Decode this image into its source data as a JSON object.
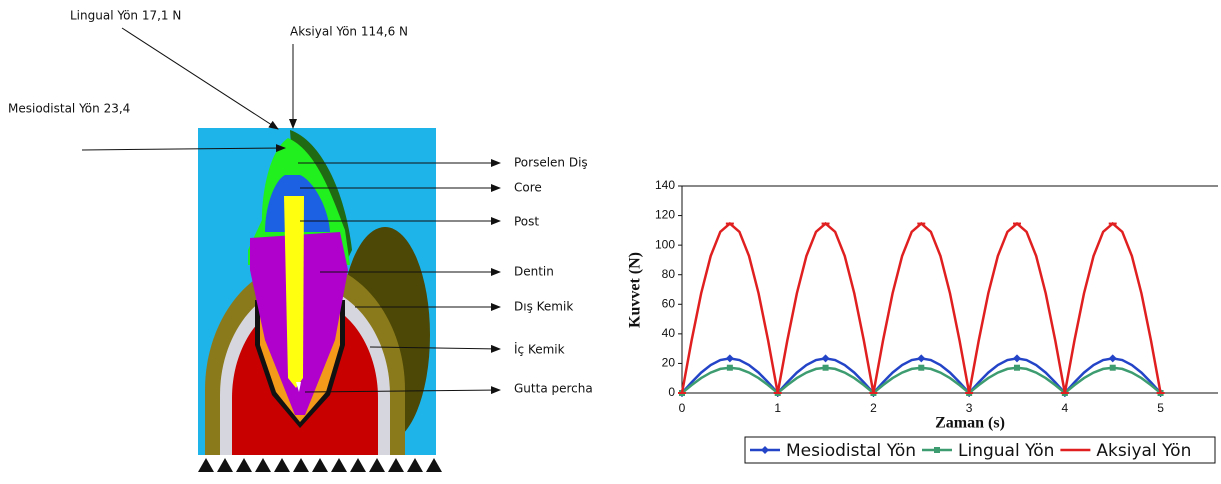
{
  "diagram": {
    "force_labels": [
      "Lingual Yön 17,1 N",
      "Aksiyal Yön 114,6 N",
      "Mesiodistal Yön 23,4"
    ],
    "part_labels": [
      "Porselen Diş",
      "Core",
      "Post",
      "Dentin",
      "Dış Kemik",
      "İç Kemik",
      "Gutta percha"
    ]
  },
  "chart_data": {
    "type": "line",
    "x_label": "Zaman (s)",
    "y_label": "Kuvvet (N)",
    "x": [
      0,
      0.1,
      0.2,
      0.3,
      0.4,
      0.5,
      0.6,
      0.7,
      0.8,
      0.9,
      1,
      1.1,
      1.2,
      1.3,
      1.4,
      1.5,
      1.6,
      1.7,
      1.8,
      1.9,
      2,
      2.1,
      2.2,
      2.3,
      2.4,
      2.5,
      2.6,
      2.7,
      2.8,
      2.9,
      3,
      3.1,
      3.2,
      3.3,
      3.4,
      3.5,
      3.6,
      3.7,
      3.8,
      3.9,
      4,
      4.1,
      4.2,
      4.3,
      4.4,
      4.5,
      4.6,
      4.7,
      4.8,
      4.9,
      5
    ],
    "series": [
      {
        "name": "Mesiodistal Yön",
        "color": "#2444c8",
        "marker": "diamond",
        "values": [
          0,
          7.2,
          13.8,
          18.9,
          22.3,
          23.4,
          22.3,
          18.9,
          13.8,
          7.2,
          0,
          7.2,
          13.8,
          18.9,
          22.3,
          23.4,
          22.3,
          18.9,
          13.8,
          7.2,
          0,
          7.2,
          13.8,
          18.9,
          22.3,
          23.4,
          22.3,
          18.9,
          13.8,
          7.2,
          0,
          7.2,
          13.8,
          18.9,
          22.3,
          23.4,
          22.3,
          18.9,
          13.8,
          7.2,
          0,
          7.2,
          13.8,
          18.9,
          22.3,
          23.4,
          22.3,
          18.9,
          13.8,
          7.2,
          0
        ]
      },
      {
        "name": "Lingual Yön",
        "color": "#3d9c70",
        "marker": "square",
        "values": [
          0,
          5.3,
          10.1,
          13.8,
          16.3,
          17.1,
          16.3,
          13.8,
          10.1,
          5.3,
          0,
          5.3,
          10.1,
          13.8,
          16.3,
          17.1,
          16.3,
          13.8,
          10.1,
          5.3,
          0,
          5.3,
          10.1,
          13.8,
          16.3,
          17.1,
          16.3,
          13.8,
          10.1,
          5.3,
          0,
          5.3,
          10.1,
          13.8,
          16.3,
          17.1,
          16.3,
          13.8,
          10.1,
          5.3,
          0,
          5.3,
          10.1,
          13.8,
          16.3,
          17.1,
          16.3,
          13.8,
          10.1,
          5.3,
          0
        ]
      },
      {
        "name": "Aksiyal Yön",
        "color": "#e02020",
        "marker": "dash",
        "values": [
          0,
          35.4,
          67.4,
          92.7,
          109,
          114.6,
          109,
          92.7,
          67.4,
          35.4,
          0,
          35.4,
          67.4,
          92.7,
          109,
          114.6,
          109,
          92.7,
          67.4,
          35.4,
          0,
          35.4,
          67.4,
          92.7,
          109,
          114.6,
          109,
          92.7,
          67.4,
          35.4,
          0,
          35.4,
          67.4,
          92.7,
          109,
          114.6,
          109,
          92.7,
          67.4,
          35.4,
          0,
          35.4,
          67.4,
          92.7,
          109,
          114.6,
          109,
          92.7,
          67.4,
          35.4,
          0
        ]
      }
    ],
    "xlim": [
      0,
      5.6
    ],
    "ylim": [
      0,
      140
    ],
    "xticks": [
      0,
      1,
      2,
      3,
      4,
      5
    ],
    "yticks": [
      0,
      20,
      40,
      60,
      80,
      100,
      120,
      140
    ],
    "grid": false
  }
}
